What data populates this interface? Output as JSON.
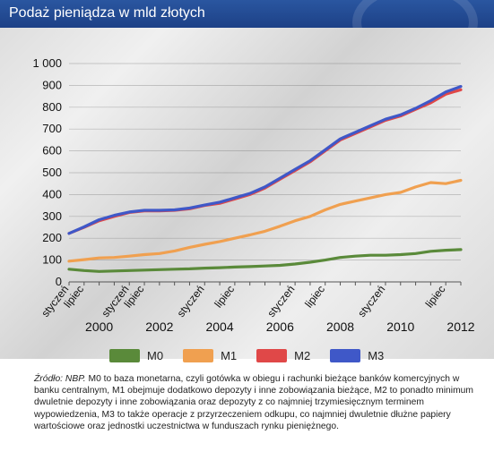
{
  "header": {
    "title": "Podaż pieniądza w mld złotych"
  },
  "colors": {
    "header_bg": "#1d4187",
    "M0": "#5a8a3a",
    "M1": "#f0a050",
    "M2": "#e04848",
    "M3": "#3f58c8"
  },
  "chart_data": {
    "type": "line",
    "title": "Podaż pieniądza w mld złotych",
    "ylim": [
      0,
      1000
    ],
    "y_ticks": [
      0,
      100,
      200,
      300,
      400,
      500,
      600,
      700,
      800,
      900,
      1000
    ],
    "y_tick_labels": [
      "0",
      "100",
      "200",
      "300",
      "400",
      "500",
      "600",
      "700",
      "800",
      "900",
      "1 000"
    ],
    "x_range": [
      1999.0,
      2012.0
    ],
    "month_tick_labels": [
      {
        "label": "styczeń",
        "x": 1999.0
      },
      {
        "label": "lipiec",
        "x": 1999.5
      },
      {
        "label": "styczeń",
        "x": 2001.0
      },
      {
        "label": "lipiec",
        "x": 2001.5
      },
      {
        "label": "styczeń",
        "x": 2003.5
      },
      {
        "label": "lipiec",
        "x": 2004.5
      },
      {
        "label": "styczeń",
        "x": 2006.5
      },
      {
        "label": "lipiec",
        "x": 2007.5
      },
      {
        "label": "styczeń",
        "x": 2009.5
      },
      {
        "label": "lipiec",
        "x": 2011.5
      }
    ],
    "year_labels": [
      "2000",
      "2002",
      "2004",
      "2006",
      "2008",
      "2010",
      "2012"
    ],
    "x": [
      1999.0,
      1999.5,
      2000.0,
      2000.5,
      2001.0,
      2001.5,
      2002.0,
      2002.5,
      2003.0,
      2003.5,
      2004.0,
      2004.5,
      2005.0,
      2005.5,
      2006.0,
      2006.5,
      2007.0,
      2007.5,
      2008.0,
      2008.5,
      2009.0,
      2009.5,
      2010.0,
      2010.5,
      2011.0,
      2011.5,
      2012.0
    ],
    "series": [
      {
        "name": "M0",
        "values": [
          58,
          52,
          48,
          50,
          52,
          54,
          56,
          58,
          60,
          63,
          65,
          68,
          70,
          73,
          76,
          82,
          90,
          100,
          112,
          118,
          122,
          122,
          125,
          130,
          140,
          145,
          148
        ]
      },
      {
        "name": "M1",
        "values": [
          95,
          102,
          110,
          112,
          118,
          125,
          130,
          142,
          158,
          172,
          185,
          200,
          215,
          232,
          255,
          280,
          300,
          330,
          355,
          370,
          385,
          400,
          410,
          435,
          455,
          450,
          465
        ]
      },
      {
        "name": "M2",
        "values": [
          222,
          250,
          280,
          300,
          318,
          325,
          325,
          328,
          335,
          350,
          360,
          380,
          400,
          430,
          470,
          510,
          550,
          600,
          650,
          680,
          710,
          740,
          760,
          790,
          820,
          860,
          880
        ]
      },
      {
        "name": "M3",
        "values": [
          222,
          252,
          285,
          305,
          320,
          328,
          328,
          330,
          338,
          352,
          365,
          385,
          405,
          435,
          475,
          515,
          555,
          605,
          655,
          685,
          715,
          745,
          765,
          795,
          830,
          870,
          895
        ]
      }
    ]
  },
  "legend": [
    {
      "label": "M0",
      "color": "#5a8a3a"
    },
    {
      "label": "M1",
      "color": "#f0a050"
    },
    {
      "label": "M2",
      "color": "#e04848"
    },
    {
      "label": "M3",
      "color": "#3f58c8"
    }
  ],
  "source": {
    "prefix": "Źródło: NBP.",
    "text": "M0 to baza monetarna, czyli gotówka w obiegu i rachunki bieżące banków komercyjnych w banku centralnym, M1 obejmuje dodatkowo depozyty i inne zobowiązania bieżące, M2 to ponadto minimum dwuletnie depozyty i inne zobowiązania oraz depozyty z co najmniej trzymiesięcznym terminem wypowiedzenia, M3 to także operacje z przyrzeczeniem odkupu, co najmniej dwuletnie dłużne papiery wartościowe oraz jednostki uczestnictwa w funduszach rynku pieniężnego."
  }
}
